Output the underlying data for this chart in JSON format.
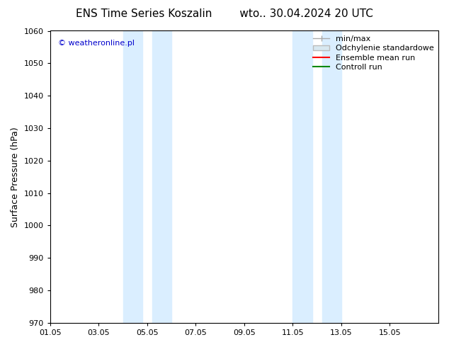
{
  "title": "ENS Time Series Koszalin        wto.. 30.04.2024 20 UTC",
  "ylabel": "Surface Pressure (hPa)",
  "ylim": [
    970,
    1060
  ],
  "yticks": [
    970,
    980,
    990,
    1000,
    1010,
    1020,
    1030,
    1040,
    1050,
    1060
  ],
  "xlim": [
    0,
    16
  ],
  "xtick_labels": [
    "01.05",
    "03.05",
    "05.05",
    "07.05",
    "09.05",
    "11.05",
    "13.05",
    "15.05"
  ],
  "xtick_positions": [
    0,
    2,
    4,
    6,
    8,
    10,
    12,
    14
  ],
  "shade_regions": [
    {
      "xmin": 3.0,
      "xmax": 3.8
    },
    {
      "xmin": 4.2,
      "xmax": 5.0
    },
    {
      "xmin": 10.0,
      "xmax": 10.8
    },
    {
      "xmin": 11.2,
      "xmax": 12.0
    }
  ],
  "shade_color": "#daeeff",
  "watermark": "© weatheronline.pl",
  "watermark_color": "#0000cc",
  "legend_entries": [
    "min/max",
    "Odchylenie standardowe",
    "Ensemble mean run",
    "Controll run"
  ],
  "legend_colors": [
    "#aaaaaa",
    "#cccccc",
    "#ff0000",
    "#008800"
  ],
  "bg_color": "#ffffff",
  "plot_bg_color": "#ffffff",
  "title_fontsize": 11,
  "axis_label_fontsize": 9,
  "tick_fontsize": 8,
  "legend_fontsize": 8
}
